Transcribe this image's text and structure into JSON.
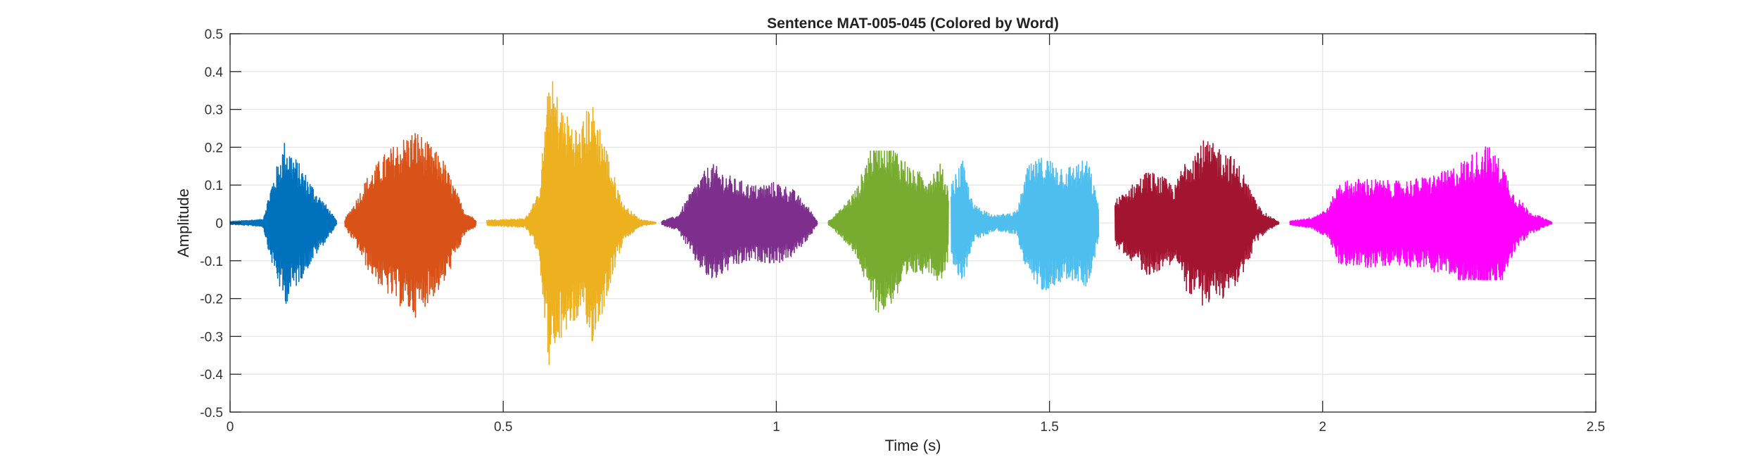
{
  "chart_data": {
    "type": "line",
    "title": "Sentence MAT-005-045 (Colored by Word)",
    "xlabel": "Time (s)",
    "ylabel": "Amplitude",
    "xlim": [
      0,
      2.5
    ],
    "ylim": [
      -0.5,
      0.5
    ],
    "x_ticks": [
      0,
      0.5,
      1,
      1.5,
      2,
      2.5
    ],
    "x_tick_labels": [
      "0",
      "0.5",
      "1",
      "1.5",
      "2",
      "2.5"
    ],
    "y_ticks": [
      -0.5,
      -0.4,
      -0.3,
      -0.2,
      -0.1,
      0,
      0.1,
      0.2,
      0.3,
      0.4,
      0.5
    ],
    "y_tick_labels": [
      "-0.5",
      "-0.4",
      "-0.3",
      "-0.2",
      "-0.1",
      "0",
      "0.1",
      "0.2",
      "0.3",
      "0.4",
      "0.5"
    ],
    "grid": true,
    "legend": "none",
    "series": [
      {
        "color": "#0072BD",
        "t_start": 0.0,
        "t_end": 0.195,
        "envelope": [
          [
            0.0,
            0.004
          ],
          [
            0.06,
            0.01
          ],
          [
            0.075,
            0.1
          ],
          [
            0.1,
            0.22
          ],
          [
            0.13,
            0.15
          ],
          [
            0.16,
            0.08
          ],
          [
            0.18,
            0.04
          ],
          [
            0.195,
            0.005
          ]
        ],
        "peak_max": 0.25,
        "peak_min": -0.22
      },
      {
        "color": "#D95319",
        "t_start": 0.21,
        "t_end": 0.45,
        "envelope": [
          [
            0.21,
            0.01
          ],
          [
            0.23,
            0.06
          ],
          [
            0.25,
            0.12
          ],
          [
            0.28,
            0.18
          ],
          [
            0.31,
            0.22
          ],
          [
            0.34,
            0.25
          ],
          [
            0.37,
            0.2
          ],
          [
            0.39,
            0.17
          ],
          [
            0.41,
            0.1
          ],
          [
            0.43,
            0.03
          ],
          [
            0.45,
            0.01
          ]
        ],
        "peak_max": 0.24,
        "peak_min": -0.31
      },
      {
        "color": "#EDB120",
        "t_start": 0.47,
        "t_end": 0.78,
        "envelope": [
          [
            0.47,
            0.008
          ],
          [
            0.54,
            0.012
          ],
          [
            0.565,
            0.08
          ],
          [
            0.585,
            0.4
          ],
          [
            0.61,
            0.3
          ],
          [
            0.64,
            0.25
          ],
          [
            0.66,
            0.33
          ],
          [
            0.68,
            0.25
          ],
          [
            0.7,
            0.14
          ],
          [
            0.72,
            0.05
          ],
          [
            0.75,
            0.01
          ],
          [
            0.78,
            0.002
          ]
        ],
        "peak_max": 0.44,
        "peak_min": -0.49
      },
      {
        "color": "#7E2F8E",
        "t_start": 0.79,
        "t_end": 1.075,
        "envelope": [
          [
            0.79,
            0.005
          ],
          [
            0.82,
            0.02
          ],
          [
            0.85,
            0.1
          ],
          [
            0.88,
            0.16
          ],
          [
            0.92,
            0.12
          ],
          [
            0.96,
            0.1
          ],
          [
            1.0,
            0.11
          ],
          [
            1.03,
            0.09
          ],
          [
            1.06,
            0.04
          ],
          [
            1.075,
            0.005
          ]
        ],
        "peak_max": 0.2,
        "peak_min": -0.19
      },
      {
        "color": "#77AC30",
        "t_start": 1.095,
        "t_end": 1.315,
        "envelope": [
          [
            1.095,
            0.005
          ],
          [
            1.12,
            0.04
          ],
          [
            1.15,
            0.1
          ],
          [
            1.17,
            0.2
          ],
          [
            1.19,
            0.25
          ],
          [
            1.22,
            0.2
          ],
          [
            1.25,
            0.14
          ],
          [
            1.28,
            0.13
          ],
          [
            1.3,
            0.16
          ],
          [
            1.315,
            0.1
          ]
        ],
        "peak_max": 0.19,
        "peak_min": -0.27
      },
      {
        "color": "#4DBEEE",
        "t_start": 1.32,
        "t_end": 1.59,
        "envelope": [
          [
            1.32,
            0.1
          ],
          [
            1.34,
            0.17
          ],
          [
            1.36,
            0.05
          ],
          [
            1.4,
            0.02
          ],
          [
            1.44,
            0.03
          ],
          [
            1.46,
            0.15
          ],
          [
            1.49,
            0.18
          ],
          [
            1.53,
            0.15
          ],
          [
            1.57,
            0.17
          ],
          [
            1.59,
            0.05
          ]
        ],
        "peak_max": 0.23,
        "peak_min": -0.2
      },
      {
        "color": "#A2142F",
        "t_start": 1.62,
        "t_end": 1.92,
        "envelope": [
          [
            1.62,
            0.06
          ],
          [
            1.65,
            0.1
          ],
          [
            1.68,
            0.14
          ],
          [
            1.71,
            0.12
          ],
          [
            1.73,
            0.1
          ],
          [
            1.75,
            0.18
          ],
          [
            1.78,
            0.22
          ],
          [
            1.82,
            0.2
          ],
          [
            1.85,
            0.15
          ],
          [
            1.88,
            0.05
          ],
          [
            1.9,
            0.02
          ],
          [
            1.92,
            0.003
          ]
        ],
        "peak_max": 0.23,
        "peak_min": -0.22
      },
      {
        "color": "#FF00FF",
        "t_start": 1.94,
        "t_end": 2.42,
        "envelope": [
          [
            1.94,
            0.005
          ],
          [
            1.98,
            0.015
          ],
          [
            2.01,
            0.04
          ],
          [
            2.03,
            0.11
          ],
          [
            2.08,
            0.12
          ],
          [
            2.13,
            0.11
          ],
          [
            2.18,
            0.12
          ],
          [
            2.23,
            0.14
          ],
          [
            2.27,
            0.18
          ],
          [
            2.3,
            0.21
          ],
          [
            2.33,
            0.16
          ],
          [
            2.35,
            0.08
          ],
          [
            2.38,
            0.03
          ],
          [
            2.42,
            0.002
          ]
        ],
        "peak_max": 0.22,
        "peak_min": -0.15
      }
    ]
  }
}
